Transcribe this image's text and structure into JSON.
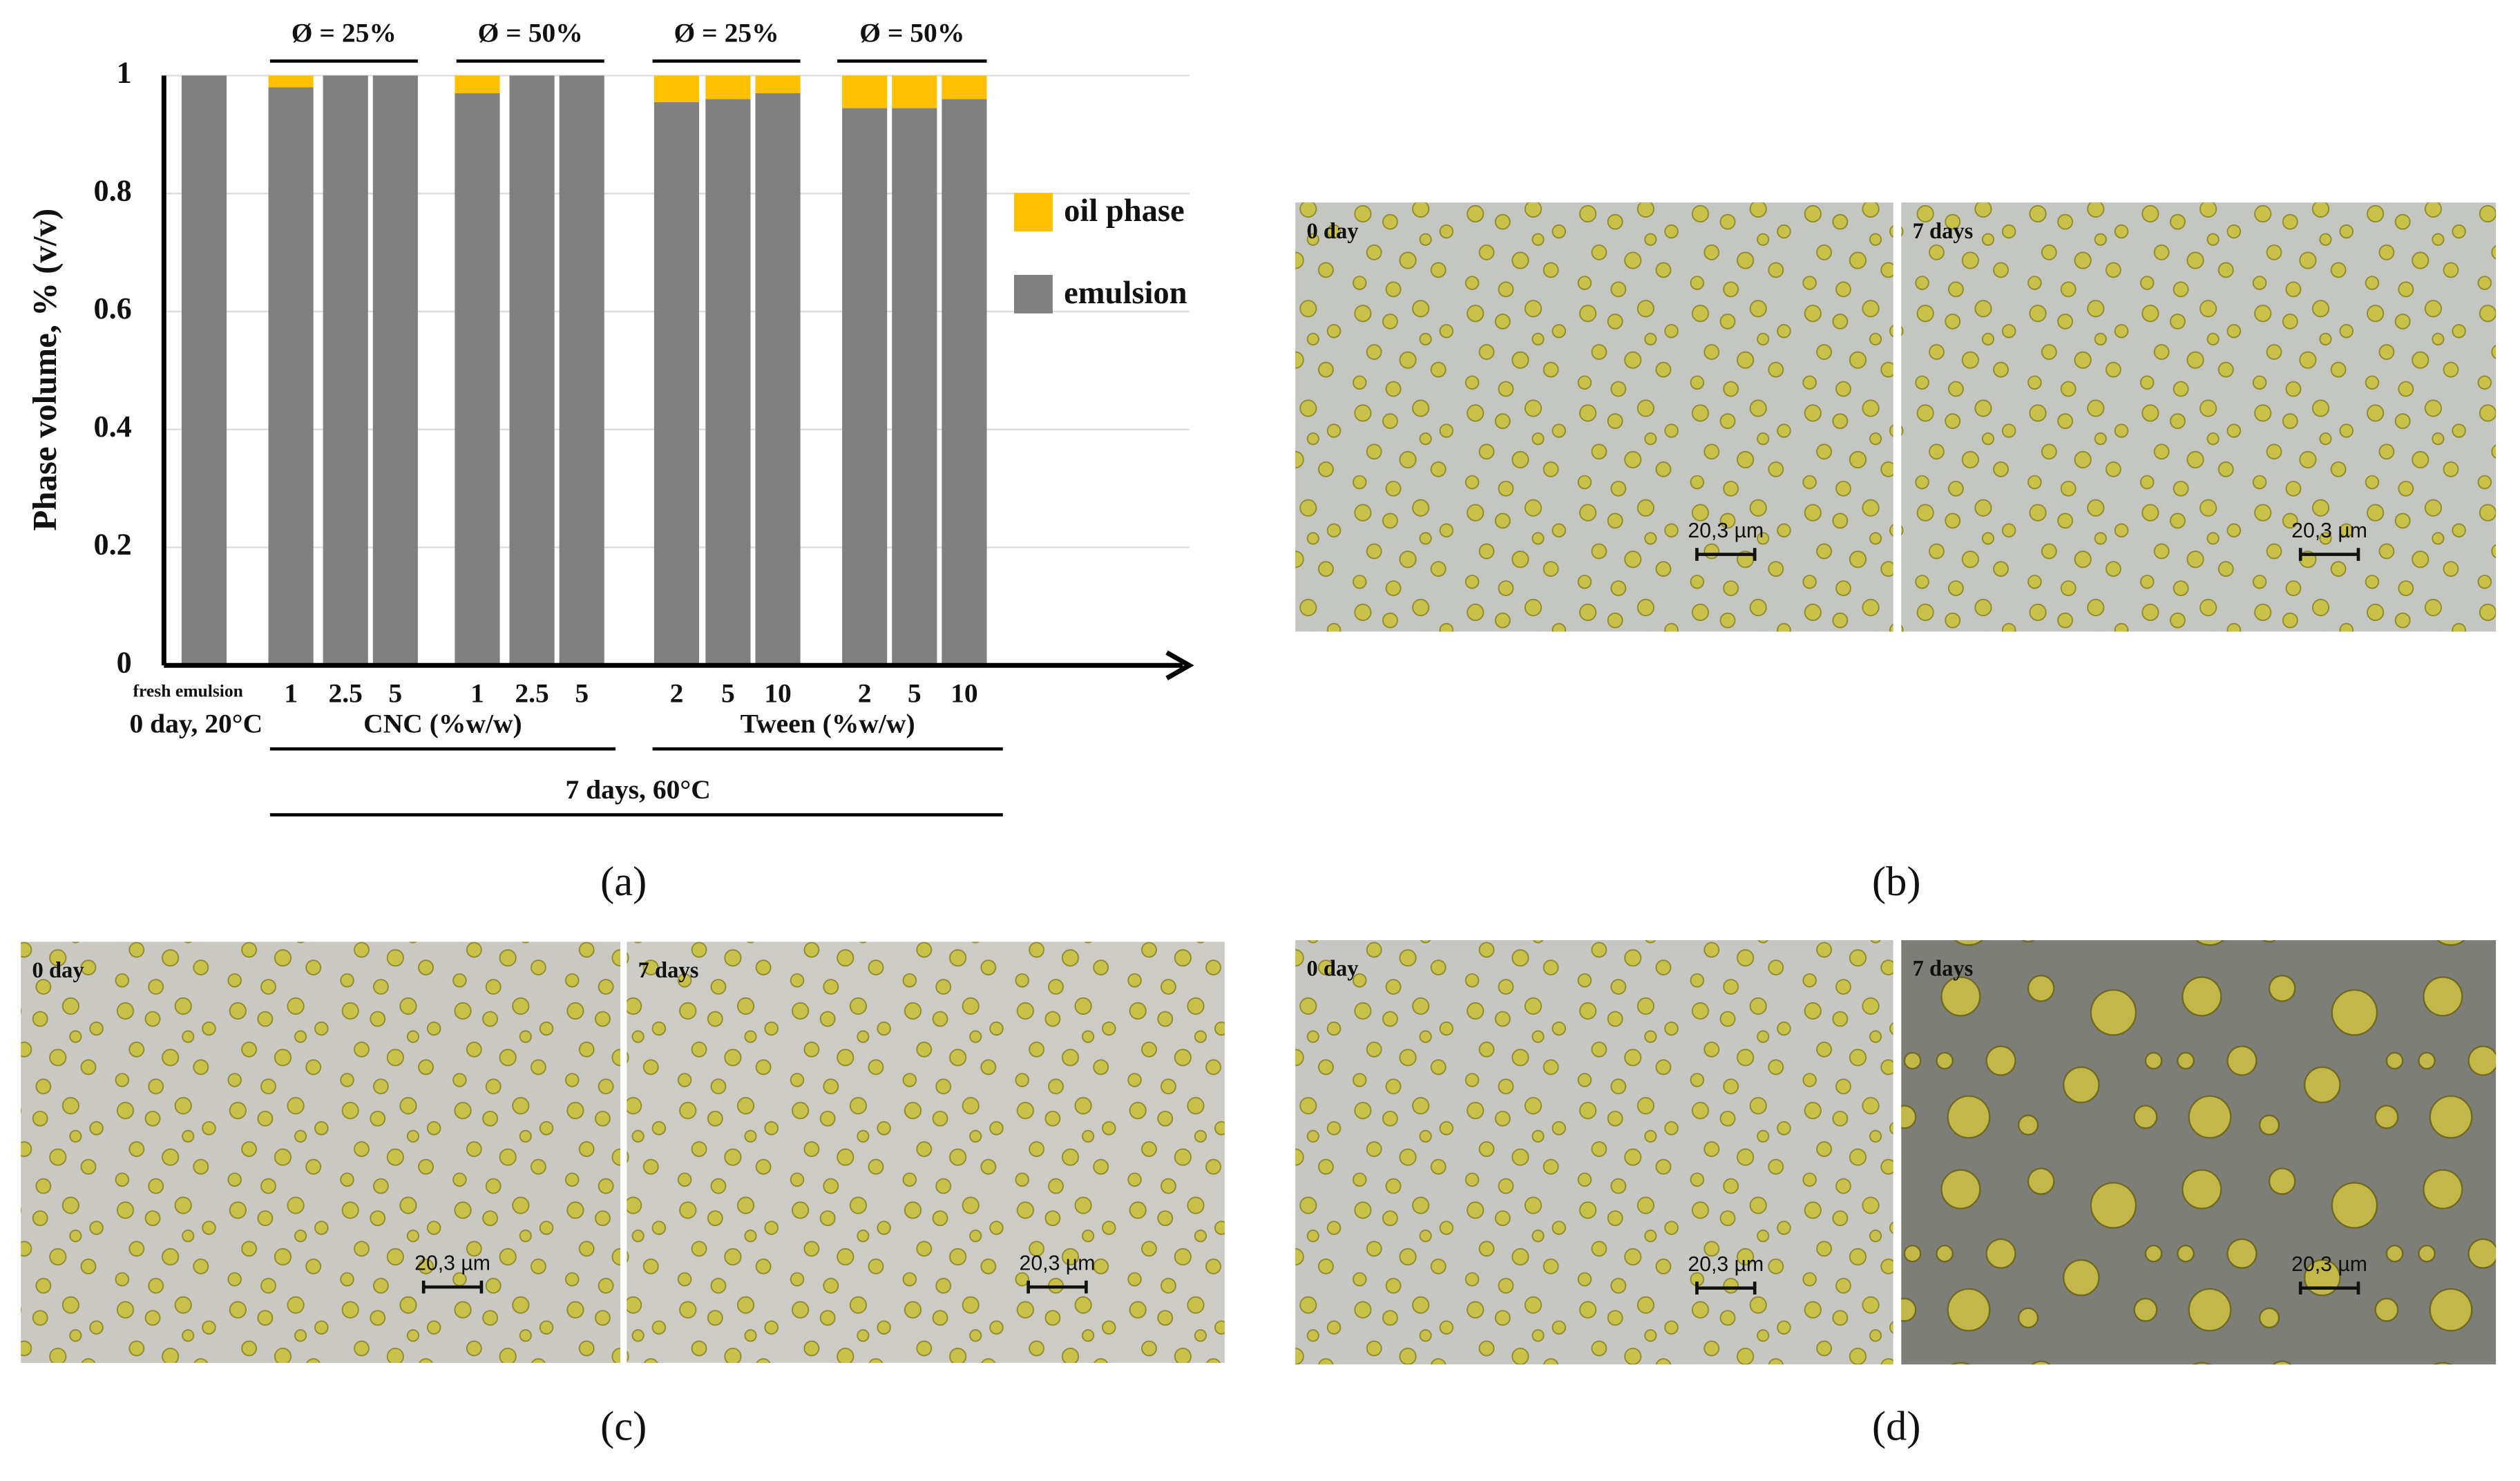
{
  "chart_data": {
    "type": "bar",
    "stacked": true,
    "y_label": "Phase volume, % (v/v)",
    "categories": [
      "fresh emulsion",
      "1",
      "2.5",
      "5",
      "1",
      "2.5",
      "5",
      "2",
      "5",
      "10",
      "2",
      "5",
      "10"
    ],
    "series": [
      {
        "name": "emulsion",
        "color": "#808080",
        "values": [
          1,
          0.98,
          1,
          1,
          0.97,
          1,
          1,
          0.955,
          0.96,
          0.97,
          0.945,
          0.945,
          0.96
        ]
      },
      {
        "name": "oil phase",
        "color": "#ffc000",
        "values": [
          0,
          0.02,
          0,
          0,
          0.03,
          0,
          0,
          0.045,
          0.04,
          0.03,
          0.055,
          0.055,
          0.04
        ]
      }
    ],
    "ylim": [
      0,
      1
    ],
    "yticks": [
      0,
      0.2,
      0.4,
      0.6,
      0.8,
      1
    ],
    "grid": true,
    "phi_labels": [
      "Ø = 25%",
      "Ø = 50%",
      "Ø = 25%",
      "Ø = 50%"
    ],
    "surfactant_labels": [
      "CNC (%w/w)",
      "Tween (%w/w)"
    ],
    "condition_labels": [
      "0 day, 20°C",
      "7 days, 60°C"
    ]
  },
  "figure": {
    "panel_labels": [
      "(a)",
      "(b)",
      "(c)",
      "(d)"
    ],
    "micrographs": [
      {
        "label": "0 day",
        "scale_bar": "20,3 µm"
      },
      {
        "label": "7 days",
        "scale_bar": "20,3 µm"
      },
      {
        "label": "0 day",
        "scale_bar": "20,3 µm"
      },
      {
        "label": "7 days",
        "scale_bar": "20,3 µm"
      },
      {
        "label": "0 day",
        "scale_bar": "20,3 µm"
      },
      {
        "label": "7 days",
        "scale_bar": "20,3 µm"
      }
    ]
  }
}
